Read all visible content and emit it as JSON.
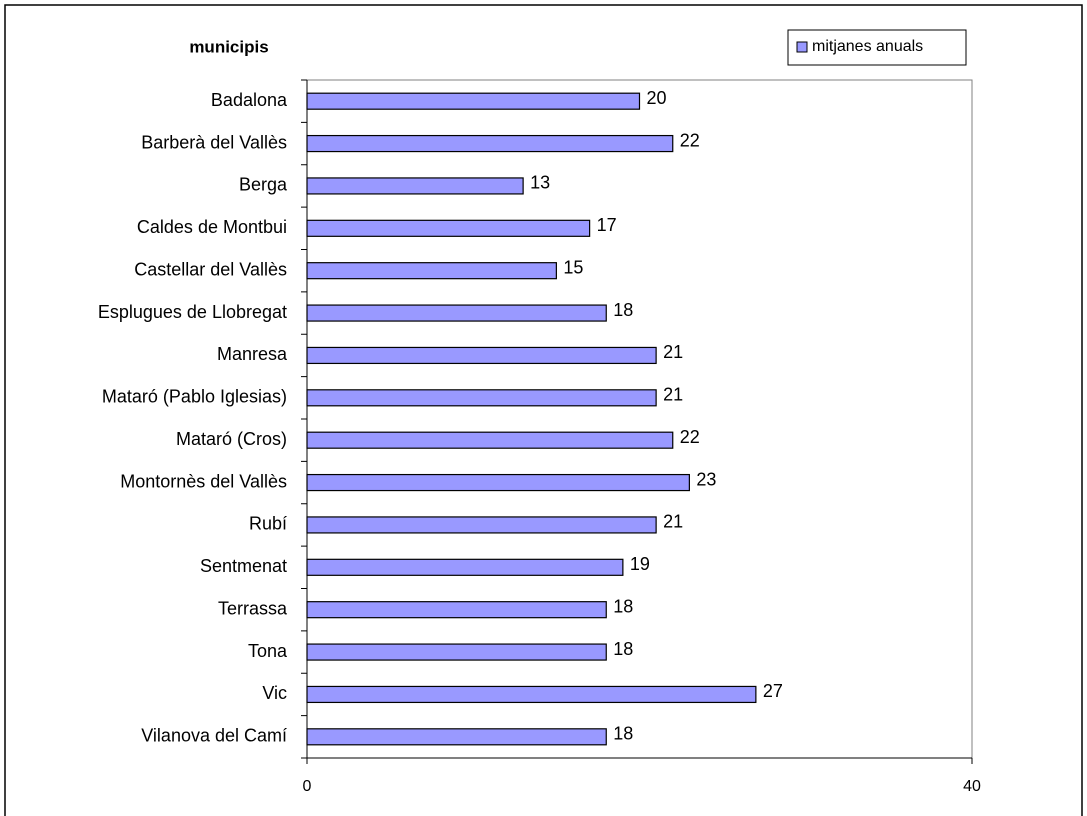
{
  "chart_data": {
    "type": "bar",
    "orientation": "horizontal",
    "y_label": "municipis",
    "categories": [
      "Badalona",
      "Barberà del Vallès",
      "Berga",
      "Caldes de Montbui",
      "Castellar del Vallès",
      "Esplugues de Llobregat",
      "Manresa",
      "Mataró (Pablo Iglesias)",
      "Mataró (Cros)",
      "Montornès del Vallès",
      "Rubí",
      "Sentmenat",
      "Terrassa",
      "Tona",
      "Vic",
      "Vilanova del Camí"
    ],
    "series": [
      {
        "name": "mitjanes anuals",
        "color": "#9999ff",
        "values": [
          20,
          22,
          13,
          17,
          15,
          18,
          21,
          21,
          22,
          23,
          21,
          19,
          18,
          18,
          27,
          18
        ]
      }
    ],
    "xlim": [
      0,
      40
    ],
    "xticks": [
      0,
      40
    ],
    "grid": false,
    "legend": "top-right"
  }
}
